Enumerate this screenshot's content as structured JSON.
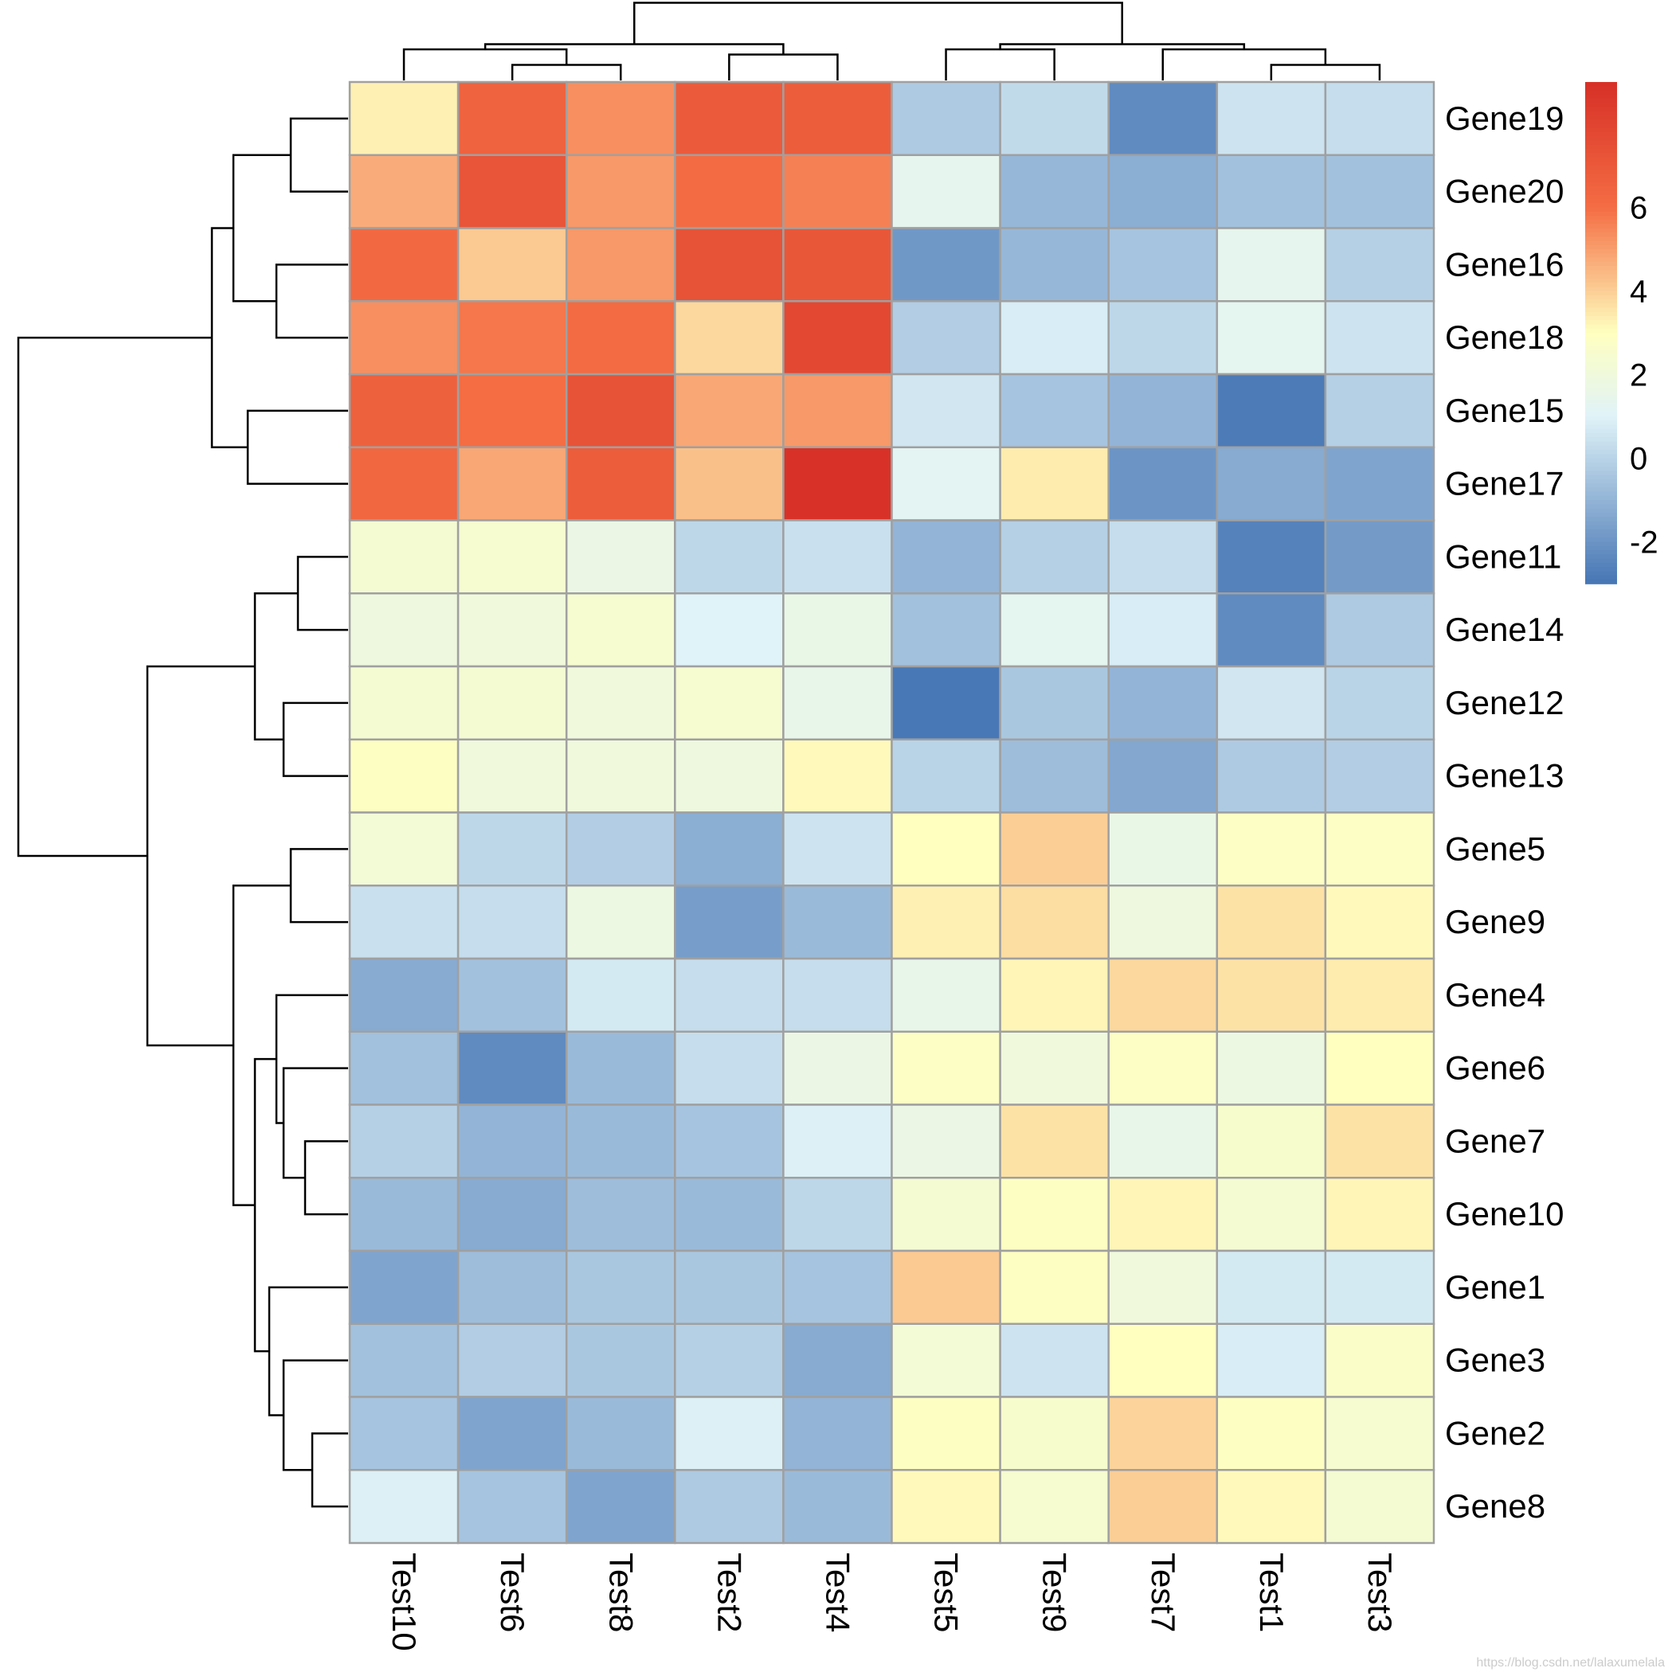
{
  "chart_data": {
    "type": "heatmap",
    "title": "",
    "xlabel": "",
    "ylabel": "",
    "columns": [
      "Test10",
      "Test6",
      "Test8",
      "Test2",
      "Test4",
      "Test5",
      "Test9",
      "Test7",
      "Test1",
      "Test3"
    ],
    "rows": [
      "Gene19",
      "Gene20",
      "Gene16",
      "Gene18",
      "Gene15",
      "Gene17",
      "Gene11",
      "Gene14",
      "Gene12",
      "Gene13",
      "Gene5",
      "Gene9",
      "Gene4",
      "Gene6",
      "Gene7",
      "Gene10",
      "Gene1",
      "Gene3",
      "Gene2",
      "Gene8"
    ],
    "values": [
      [
        3.3,
        6.5,
        5.3,
        6.9,
        6.8,
        -0.3,
        0.2,
        -2.3,
        0.5,
        0.3
      ],
      [
        4.7,
        7.2,
        5.1,
        6.1,
        5.6,
        1.4,
        -0.9,
        -1.2,
        -0.6,
        -0.6
      ],
      [
        6.2,
        4.1,
        5.1,
        7.3,
        7.1,
        -1.9,
        -0.9,
        -0.5,
        1.4,
        -0.1
      ],
      [
        5.3,
        5.8,
        6.1,
        3.8,
        7.8,
        -0.2,
        0.8,
        0.1,
        1.3,
        0.5
      ],
      [
        6.6,
        6.0,
        7.3,
        4.8,
        5.1,
        0.6,
        -0.5,
        -1.0,
        -2.8,
        -0.1
      ],
      [
        6.3,
        4.8,
        6.8,
        4.3,
        8.9,
        1.2,
        3.4,
        -2.0,
        -1.3,
        -1.5
      ],
      [
        2.3,
        2.4,
        1.7,
        0.1,
        0.4,
        -1.0,
        -0.1,
        0.3,
        -2.6,
        -1.8
      ],
      [
        1.9,
        2.0,
        2.4,
        1.0,
        1.6,
        -0.6,
        1.3,
        0.8,
        -2.3,
        -0.3
      ],
      [
        2.3,
        2.3,
        2.0,
        2.4,
        1.5,
        -2.9,
        -0.4,
        -1.0,
        0.6,
        0.0
      ],
      [
        2.9,
        2.0,
        2.0,
        1.9,
        3.1,
        0.0,
        -0.7,
        -1.4,
        -0.3,
        -0.2
      ],
      [
        2.2,
        0.1,
        -0.2,
        -1.2,
        0.5,
        3.0,
        4.0,
        1.6,
        2.8,
        2.8
      ],
      [
        0.4,
        0.3,
        1.8,
        -1.7,
        -0.8,
        3.3,
        3.7,
        1.9,
        3.6,
        3.1
      ],
      [
        -1.3,
        -0.6,
        0.7,
        0.3,
        0.3,
        1.5,
        3.2,
        3.8,
        3.6,
        3.4
      ],
      [
        -0.6,
        -2.3,
        -0.8,
        0.3,
        1.7,
        2.8,
        2.0,
        2.8,
        1.8,
        3.0
      ],
      [
        -0.1,
        -1.0,
        -0.8,
        -0.5,
        0.9,
        1.7,
        3.6,
        1.5,
        2.5,
        3.6
      ],
      [
        -0.8,
        -1.3,
        -0.7,
        -0.8,
        0.1,
        2.3,
        2.9,
        3.2,
        2.3,
        3.2
      ],
      [
        -1.5,
        -0.7,
        -0.4,
        -0.4,
        -0.5,
        4.1,
        2.9,
        2.0,
        0.7,
        0.7
      ],
      [
        -0.6,
        -0.2,
        -0.4,
        -0.1,
        -1.3,
        2.2,
        0.5,
        3.0,
        0.8,
        2.7
      ],
      [
        -0.5,
        -1.5,
        -0.8,
        0.9,
        -1.0,
        2.9,
        2.5,
        3.9,
        2.9,
        2.4
      ],
      [
        0.9,
        -0.5,
        -1.5,
        -0.3,
        -0.8,
        3.1,
        2.4,
        4.0,
        3.1,
        2.3
      ]
    ],
    "color_scale": {
      "min": -3,
      "max": 9,
      "stops": [
        {
          "value": -3,
          "color": "#4575B4"
        },
        {
          "value": 1,
          "color": "#E0F3F8"
        },
        {
          "value": 3,
          "color": "#FFFFBF"
        },
        {
          "value": 6,
          "color": "#F46D43"
        },
        {
          "value": 9,
          "color": "#D73027"
        }
      ]
    },
    "legend": {
      "position": "right",
      "ticks": [
        -2,
        0,
        2,
        4,
        6
      ],
      "tick_labels": [
        "-2",
        "0",
        "2",
        "4",
        "6"
      ]
    },
    "cell_border_color": "#A0A0A0",
    "dendrogram_color": "#000000",
    "row_dendrogram": {
      "merges": [
        [
          0,
          1
        ],
        [
          2,
          3
        ],
        [
          4,
          5
        ],
        [
          20,
          21
        ],
        [
          23,
          22
        ],
        [
          6,
          7
        ],
        [
          8,
          9
        ],
        [
          25,
          26
        ],
        [
          10,
          11
        ],
        [
          14,
          15
        ],
        [
          13,
          29
        ],
        [
          12,
          30
        ],
        [
          18,
          19
        ],
        [
          17,
          32
        ],
        [
          16,
          33
        ],
        [
          31,
          34
        ],
        [
          28,
          35
        ],
        [
          27,
          36
        ],
        [
          24,
          37
        ]
      ],
      "heights": [
        0.8,
        1.0,
        1.4,
        1.6,
        1.9,
        0.7,
        0.9,
        1.3,
        0.8,
        0.6,
        0.9,
        1.0,
        0.5,
        0.9,
        1.1,
        1.3,
        1.6,
        2.8,
        4.6
      ]
    },
    "col_dendrogram": {
      "merges": [
        [
          1,
          2
        ],
        [
          3,
          4
        ],
        [
          0,
          10
        ],
        [
          11,
          12
        ],
        [
          8,
          9
        ],
        [
          7,
          14
        ],
        [
          5,
          6
        ],
        [
          16,
          15
        ],
        [
          13,
          17
        ]
      ],
      "heights": [
        0.3,
        0.5,
        0.6,
        0.7,
        0.3,
        0.6,
        0.6,
        0.7,
        1.5
      ]
    },
    "watermark": "https://blog.csdn.net/lalaxumelala"
  }
}
